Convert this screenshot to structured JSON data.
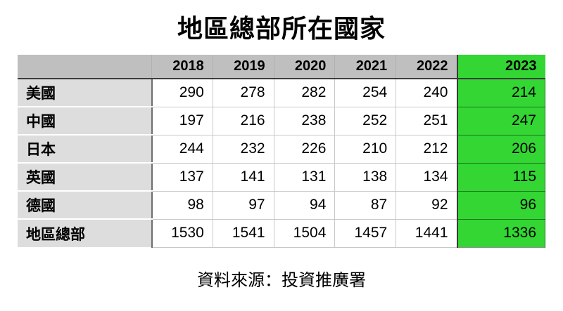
{
  "chart_data": {
    "type": "table",
    "title": "地區總部所在國家",
    "categories": [
      "2018",
      "2019",
      "2020",
      "2021",
      "2022",
      "2023"
    ],
    "series": [
      {
        "name": "美國",
        "values": [
          290,
          278,
          282,
          254,
          240,
          214
        ]
      },
      {
        "name": "中國",
        "values": [
          197,
          216,
          238,
          252,
          251,
          247
        ]
      },
      {
        "name": "日本",
        "values": [
          244,
          232,
          226,
          210,
          212,
          206
        ]
      },
      {
        "name": "英國",
        "values": [
          137,
          141,
          131,
          138,
          134,
          115
        ]
      },
      {
        "name": "德國",
        "values": [
          98,
          97,
          94,
          87,
          92,
          96
        ]
      },
      {
        "name": "地區總部",
        "values": [
          1530,
          1541,
          1504,
          1457,
          1441,
          1336
        ]
      }
    ],
    "highlight_column": "2023",
    "source": "資料來源：投資推廣署",
    "legend": "none",
    "grid": "on"
  },
  "colors": {
    "highlight_green": "#33D633",
    "header_gray": "#BFBFBF",
    "label_gray": "#DDDDDD",
    "grid_line": "#C8C8C8",
    "dark_line": "#3C3C3C",
    "label_divider": "#6E6E6E",
    "text": "#000000",
    "background": "#FFFFFF"
  }
}
